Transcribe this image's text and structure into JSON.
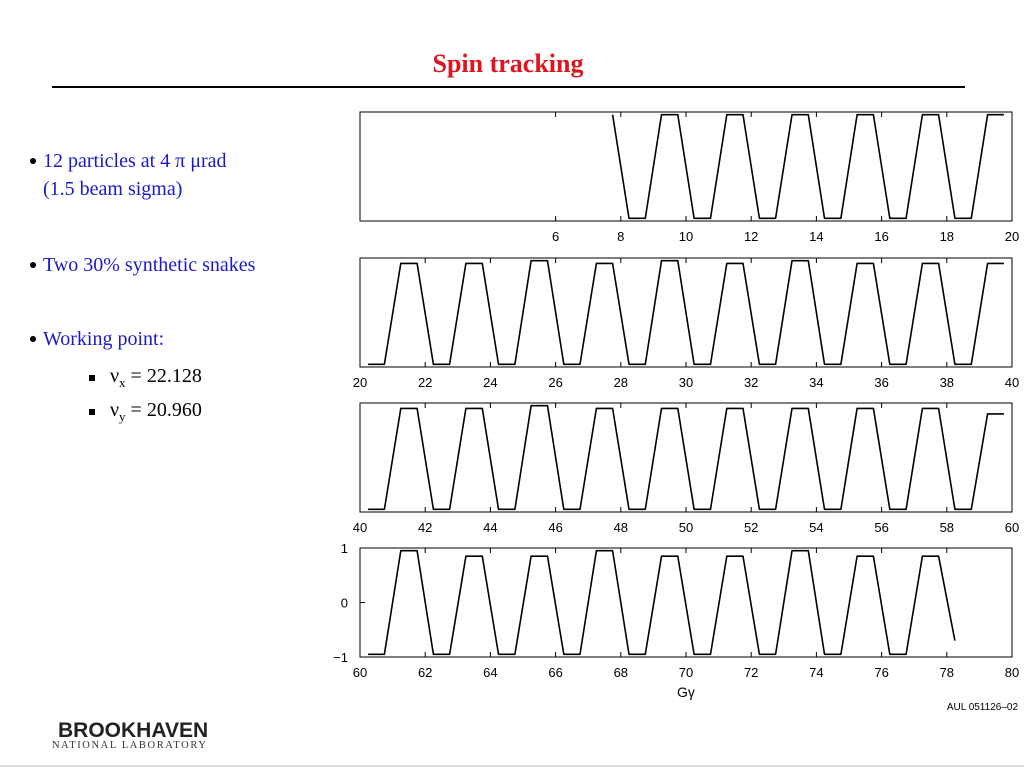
{
  "header": {
    "title": "Spin tracking"
  },
  "bullets": [
    {
      "lines": [
        "12 particles at 4 π μrad",
        "(1.5 beam sigma)"
      ]
    },
    {
      "lines": [
        "Two 30% synthetic snakes"
      ]
    },
    {
      "lines": [
        "Working point:"
      ],
      "sub_bullets": [
        {
          "symbol": "ν",
          "subscript": "x",
          "text": " = 22.128"
        },
        {
          "symbol": "ν",
          "subscript": "y",
          "text": " = 20.960"
        }
      ]
    }
  ],
  "chart_data": [
    {
      "type": "line",
      "color": "#000000",
      "xlim": [
        0,
        20
      ],
      "ylim": [
        -1,
        1
      ],
      "xticks": [
        6,
        8,
        10,
        12,
        14,
        16,
        18,
        20
      ],
      "x": [
        7.75,
        8.25,
        8.75,
        9.25,
        9.75,
        10.25,
        10.75,
        11.25,
        11.75,
        12.25,
        12.75,
        13.25,
        13.75,
        14.25,
        14.75,
        15.25,
        15.75,
        16.25,
        16.75,
        17.25,
        17.75,
        18.25,
        18.75,
        19.25,
        19.75
      ],
      "values": [
        0.95,
        -0.95,
        -0.95,
        0.95,
        0.95,
        -0.95,
        -0.95,
        0.95,
        0.95,
        -0.95,
        -0.95,
        0.95,
        0.95,
        -0.95,
        -0.95,
        0.95,
        0.95,
        -0.95,
        -0.95,
        0.95,
        0.95,
        -0.95,
        -0.95,
        0.95,
        0.95
      ]
    },
    {
      "type": "line",
      "color": "#000000",
      "xlim": [
        20,
        40
      ],
      "ylim": [
        -1,
        1
      ],
      "xticks": [
        20,
        22,
        24,
        26,
        28,
        30,
        32,
        34,
        36,
        38,
        40
      ],
      "x": [
        20.25,
        20.75,
        21.25,
        21.75,
        22.25,
        22.75,
        23.25,
        23.75,
        24.25,
        24.75,
        25.25,
        25.75,
        26.25,
        26.75,
        27.25,
        27.75,
        28.25,
        28.75,
        29.25,
        29.75,
        30.25,
        30.75,
        31.25,
        31.75,
        32.25,
        32.75,
        33.25,
        33.75,
        34.25,
        34.75,
        35.25,
        35.75,
        36.25,
        36.75,
        37.25,
        37.75,
        38.25,
        38.75,
        39.25,
        39.75
      ],
      "values": [
        -0.95,
        -0.95,
        0.9,
        0.9,
        -0.95,
        -0.95,
        0.9,
        0.9,
        -0.95,
        -0.95,
        0.95,
        0.95,
        -0.95,
        -0.95,
        0.9,
        0.9,
        -0.95,
        -0.95,
        0.95,
        0.95,
        -0.95,
        -0.95,
        0.9,
        0.9,
        -0.95,
        -0.95,
        0.95,
        0.95,
        -0.95,
        -0.95,
        0.9,
        0.9,
        -0.95,
        -0.95,
        0.9,
        0.9,
        -0.95,
        -0.95,
        0.9,
        0.9
      ]
    },
    {
      "type": "line",
      "color": "#000000",
      "xlim": [
        40,
        60
      ],
      "ylim": [
        -1,
        1
      ],
      "xticks": [
        40,
        42,
        44,
        46,
        48,
        50,
        52,
        54,
        56,
        58,
        60
      ],
      "x": [
        40.25,
        40.75,
        41.25,
        41.75,
        42.25,
        42.75,
        43.25,
        43.75,
        44.25,
        44.75,
        45.25,
        45.75,
        46.25,
        46.75,
        47.25,
        47.75,
        48.25,
        48.75,
        49.25,
        49.75,
        50.25,
        50.75,
        51.25,
        51.75,
        52.25,
        52.75,
        53.25,
        53.75,
        54.25,
        54.75,
        55.25,
        55.75,
        56.25,
        56.75,
        57.25,
        57.75,
        58.25,
        58.75,
        59.25,
        59.75
      ],
      "values": [
        -0.95,
        -0.95,
        0.9,
        0.9,
        -0.95,
        -0.95,
        0.9,
        0.9,
        -0.95,
        -0.95,
        0.95,
        0.95,
        -0.95,
        -0.95,
        0.9,
        0.9,
        -0.95,
        -0.95,
        0.9,
        0.9,
        -0.95,
        -0.95,
        0.9,
        0.9,
        -0.95,
        -0.95,
        0.9,
        0.9,
        -0.95,
        -0.95,
        0.9,
        0.9,
        -0.95,
        -0.95,
        0.9,
        0.9,
        -0.95,
        -0.95,
        0.8,
        0.8
      ]
    },
    {
      "type": "line",
      "color": "#000000",
      "xlim": [
        60,
        80
      ],
      "ylim": [
        -1,
        1
      ],
      "xticks": [
        60,
        62,
        64,
        66,
        68,
        70,
        72,
        74,
        76,
        78,
        80
      ],
      "yticks": [
        {
          "value": -1,
          "label": "−1"
        },
        0,
        1
      ],
      "xlabel": "Gγ",
      "x": [
        60.25,
        60.75,
        61.25,
        61.75,
        62.25,
        62.75,
        63.25,
        63.75,
        64.25,
        64.75,
        65.25,
        65.75,
        66.25,
        66.75,
        67.25,
        67.75,
        68.25,
        68.75,
        69.25,
        69.75,
        70.25,
        70.75,
        71.25,
        71.75,
        72.25,
        72.75,
        73.25,
        73.75,
        74.25,
        74.75,
        75.25,
        75.75,
        76.25,
        76.75,
        77.25,
        77.75,
        78.25
      ],
      "values": [
        -0.95,
        -0.95,
        0.95,
        0.95,
        -0.95,
        -0.95,
        0.85,
        0.85,
        -0.95,
        -0.95,
        0.85,
        0.85,
        -0.95,
        -0.95,
        0.95,
        0.95,
        -0.95,
        -0.95,
        0.85,
        0.85,
        -0.95,
        -0.95,
        0.85,
        0.85,
        -0.95,
        -0.95,
        0.95,
        0.95,
        -0.95,
        -0.95,
        0.85,
        0.85,
        -0.95,
        -0.95,
        0.85,
        0.85,
        -0.7
      ]
    }
  ],
  "annotation": "AUL 051126–02",
  "logo": {
    "name": "BROOKHAVEN",
    "subtitle": "NATIONAL LABORATORY"
  }
}
